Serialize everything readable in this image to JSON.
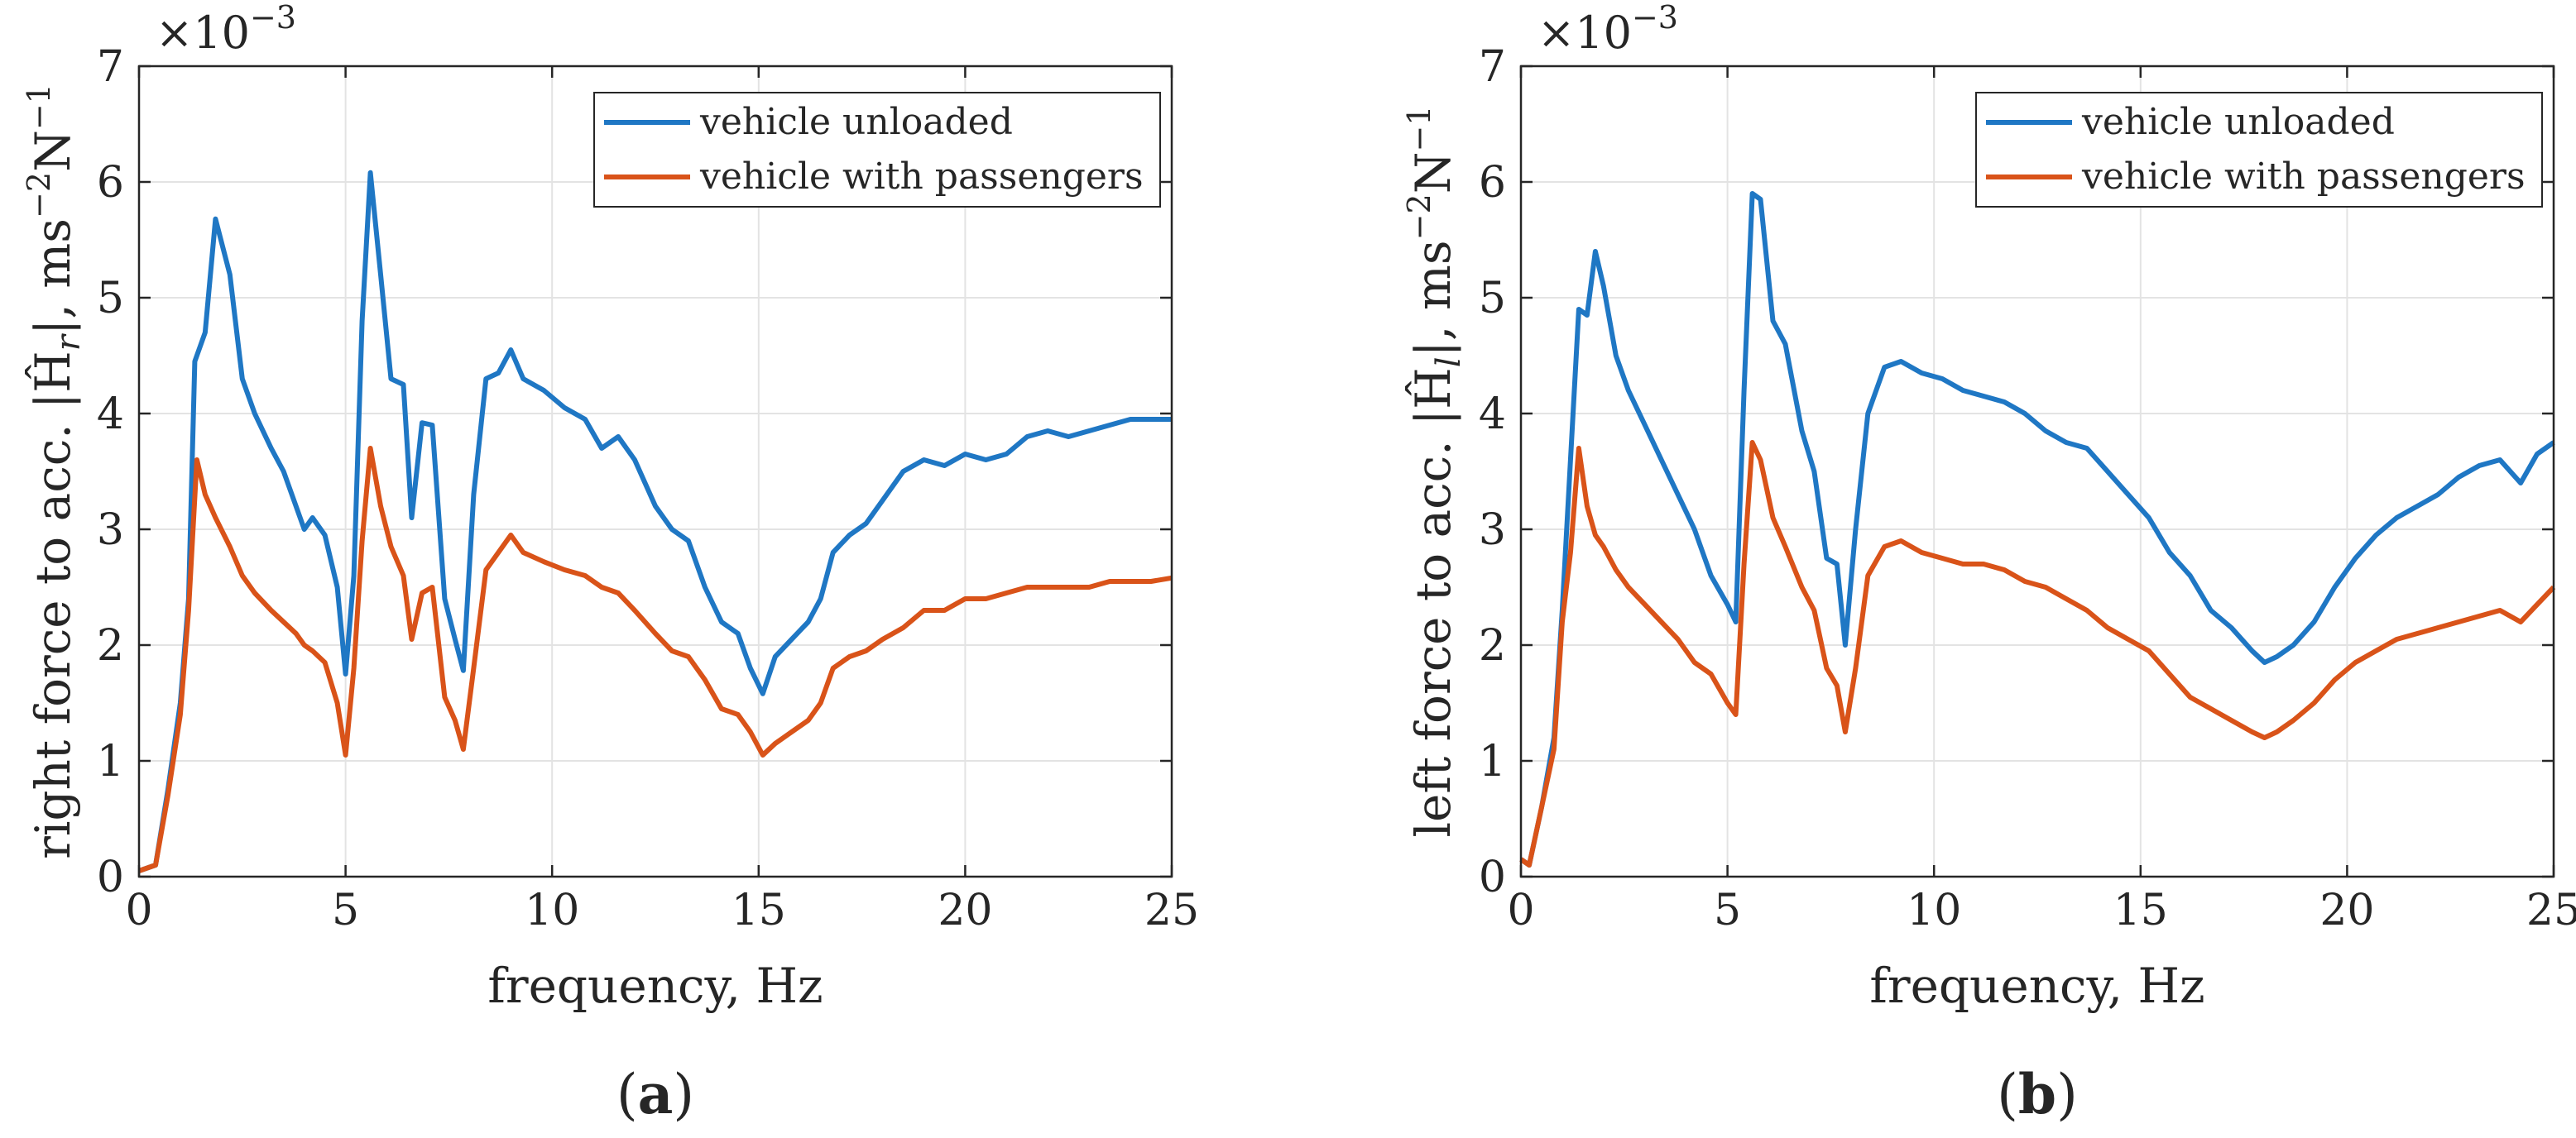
{
  "colors": {
    "unloaded": "#1f77c4",
    "passengers": "#d95319",
    "grid": "#e3e3e3",
    "axis": "#262626"
  },
  "chart_data": [
    {
      "type": "line",
      "panel_label": "(a)",
      "panel_letter": "a",
      "panel_open": "(",
      "panel_close": ")",
      "xlabel": "frequency, Hz",
      "ylabel_text": "right force to acc.",
      "ylabel_sym": "|Ĥ",
      "ylabel_sub": "r",
      "ylabel_units": "|, ms",
      "ylabel_exp1": "−2",
      "ylabel_n": "N",
      "ylabel_exp2": "−1",
      "exponent_base": "×10",
      "exponent_power": "−3",
      "xlim": [
        0,
        25
      ],
      "ylim": [
        0,
        7
      ],
      "xticks": [
        "0",
        "5",
        "10",
        "15",
        "20",
        "25"
      ],
      "yticks": [
        "0",
        "1",
        "2",
        "3",
        "4",
        "5",
        "6",
        "7"
      ],
      "grid": true,
      "legend_position": "top-right",
      "series": [
        {
          "name": "vehicle unloaded",
          "x": [
            0,
            0.4,
            0.7,
            1.0,
            1.2,
            1.35,
            1.6,
            1.85,
            2.2,
            2.5,
            2.8,
            3.2,
            3.5,
            3.8,
            4.0,
            4.2,
            4.5,
            4.8,
            5.0,
            5.2,
            5.4,
            5.6,
            5.85,
            6.1,
            6.4,
            6.6,
            6.85,
            7.1,
            7.4,
            7.65,
            7.85,
            8.1,
            8.4,
            8.7,
            9.0,
            9.3,
            9.8,
            10.3,
            10.8,
            11.2,
            11.6,
            12.0,
            12.5,
            12.9,
            13.3,
            13.7,
            14.1,
            14.5,
            14.8,
            15.1,
            15.4,
            15.8,
            16.2,
            16.5,
            16.8,
            17.2,
            17.6,
            18.0,
            18.5,
            19.0,
            19.5,
            20.0,
            20.5,
            21.0,
            21.5,
            22.0,
            22.5,
            23.0,
            23.5,
            24.0,
            24.5,
            25.0
          ],
          "y": [
            0.05,
            0.1,
            0.75,
            1.5,
            2.4,
            4.45,
            4.7,
            5.68,
            5.2,
            4.3,
            4.0,
            3.7,
            3.5,
            3.2,
            3.0,
            3.1,
            2.95,
            2.5,
            1.75,
            2.6,
            4.8,
            6.08,
            5.2,
            4.3,
            4.25,
            3.1,
            3.92,
            3.9,
            2.4,
            2.05,
            1.78,
            3.3,
            4.3,
            4.35,
            4.55,
            4.3,
            4.2,
            4.05,
            3.95,
            3.7,
            3.8,
            3.6,
            3.2,
            3.0,
            2.9,
            2.5,
            2.2,
            2.1,
            1.8,
            1.58,
            1.9,
            2.05,
            2.2,
            2.4,
            2.8,
            2.95,
            3.05,
            3.25,
            3.5,
            3.6,
            3.55,
            3.65,
            3.6,
            3.65,
            3.8,
            3.85,
            3.8,
            3.85,
            3.9,
            3.95,
            3.95,
            3.95
          ]
        },
        {
          "name": "vehicle with passengers",
          "x": [
            0,
            0.4,
            0.7,
            1.0,
            1.2,
            1.4,
            1.6,
            1.85,
            2.2,
            2.5,
            2.8,
            3.2,
            3.5,
            3.8,
            4.0,
            4.2,
            4.5,
            4.8,
            5.0,
            5.2,
            5.4,
            5.6,
            5.85,
            6.1,
            6.4,
            6.6,
            6.85,
            7.1,
            7.4,
            7.65,
            7.85,
            8.1,
            8.4,
            8.7,
            9.0,
            9.3,
            9.8,
            10.3,
            10.8,
            11.2,
            11.6,
            12.0,
            12.5,
            12.9,
            13.3,
            13.7,
            14.1,
            14.5,
            14.8,
            15.1,
            15.4,
            15.8,
            16.2,
            16.5,
            16.8,
            17.2,
            17.6,
            18.0,
            18.5,
            19.0,
            19.5,
            20.0,
            20.5,
            21.0,
            21.5,
            22.0,
            22.5,
            23.0,
            23.5,
            24.0,
            24.5,
            25.0
          ],
          "y": [
            0.05,
            0.1,
            0.7,
            1.4,
            2.3,
            3.6,
            3.3,
            3.1,
            2.85,
            2.6,
            2.45,
            2.3,
            2.2,
            2.1,
            2.0,
            1.95,
            1.85,
            1.5,
            1.05,
            1.8,
            2.9,
            3.7,
            3.2,
            2.85,
            2.6,
            2.05,
            2.45,
            2.5,
            1.55,
            1.35,
            1.1,
            1.8,
            2.65,
            2.8,
            2.95,
            2.8,
            2.72,
            2.65,
            2.6,
            2.5,
            2.45,
            2.3,
            2.1,
            1.95,
            1.9,
            1.7,
            1.45,
            1.4,
            1.25,
            1.05,
            1.15,
            1.25,
            1.35,
            1.5,
            1.8,
            1.9,
            1.95,
            2.05,
            2.15,
            2.3,
            2.3,
            2.4,
            2.4,
            2.45,
            2.5,
            2.5,
            2.5,
            2.5,
            2.55,
            2.55,
            2.55,
            2.58
          ]
        }
      ]
    },
    {
      "type": "line",
      "panel_label": "(b)",
      "panel_letter": "b",
      "panel_open": "(",
      "panel_close": ")",
      "xlabel": "frequency, Hz",
      "ylabel_text": "left force to acc.",
      "ylabel_sym": "|Ĥ",
      "ylabel_sub": "l",
      "ylabel_units": "|, ms",
      "ylabel_exp1": "−2",
      "ylabel_n": "N",
      "ylabel_exp2": "−1",
      "exponent_base": "×10",
      "exponent_power": "−3",
      "xlim": [
        0,
        25
      ],
      "ylim": [
        0,
        7
      ],
      "xticks": [
        "0",
        "5",
        "10",
        "15",
        "20",
        "25"
      ],
      "yticks": [
        "0",
        "1",
        "2",
        "3",
        "4",
        "5",
        "6",
        "7"
      ],
      "grid": true,
      "legend_position": "top-right",
      "series": [
        {
          "name": "vehicle unloaded",
          "x": [
            0,
            0.2,
            0.5,
            0.8,
            1.0,
            1.2,
            1.4,
            1.6,
            1.8,
            2.0,
            2.3,
            2.6,
            3.0,
            3.4,
            3.8,
            4.2,
            4.6,
            5.0,
            5.2,
            5.4,
            5.6,
            5.8,
            6.1,
            6.4,
            6.8,
            7.1,
            7.4,
            7.65,
            7.85,
            8.1,
            8.4,
            8.8,
            9.2,
            9.7,
            10.2,
            10.7,
            11.2,
            11.7,
            12.2,
            12.7,
            13.2,
            13.7,
            14.2,
            14.7,
            15.2,
            15.7,
            16.2,
            16.7,
            17.2,
            17.7,
            18.0,
            18.3,
            18.7,
            19.2,
            19.7,
            20.2,
            20.7,
            21.2,
            21.7,
            22.2,
            22.7,
            23.2,
            23.7,
            24.2,
            24.6,
            25.0
          ],
          "y": [
            0.15,
            0.1,
            0.6,
            1.2,
            2.3,
            3.6,
            4.9,
            4.85,
            5.4,
            5.1,
            4.5,
            4.2,
            3.9,
            3.6,
            3.3,
            3.0,
            2.6,
            2.35,
            2.2,
            4.2,
            5.9,
            5.85,
            4.8,
            4.6,
            3.85,
            3.5,
            2.75,
            2.7,
            2.0,
            3.0,
            4.0,
            4.4,
            4.45,
            4.35,
            4.3,
            4.2,
            4.15,
            4.1,
            4.0,
            3.85,
            3.75,
            3.7,
            3.5,
            3.3,
            3.1,
            2.8,
            2.6,
            2.3,
            2.15,
            1.95,
            1.85,
            1.9,
            2.0,
            2.2,
            2.5,
            2.75,
            2.95,
            3.1,
            3.2,
            3.3,
            3.45,
            3.55,
            3.6,
            3.4,
            3.65,
            3.75
          ]
        },
        {
          "name": "vehicle with passengers",
          "x": [
            0,
            0.2,
            0.5,
            0.8,
            1.0,
            1.2,
            1.4,
            1.6,
            1.8,
            2.0,
            2.3,
            2.6,
            3.0,
            3.4,
            3.8,
            4.2,
            4.6,
            5.0,
            5.2,
            5.4,
            5.6,
            5.8,
            6.1,
            6.4,
            6.8,
            7.1,
            7.4,
            7.65,
            7.85,
            8.1,
            8.4,
            8.8,
            9.2,
            9.7,
            10.2,
            10.7,
            11.2,
            11.7,
            12.2,
            12.7,
            13.2,
            13.7,
            14.2,
            14.7,
            15.2,
            15.7,
            16.2,
            16.7,
            17.2,
            17.7,
            18.0,
            18.3,
            18.7,
            19.2,
            19.7,
            20.2,
            20.7,
            21.2,
            21.7,
            22.2,
            22.7,
            23.2,
            23.7,
            24.2,
            24.6,
            25.0
          ],
          "y": [
            0.15,
            0.1,
            0.6,
            1.1,
            2.2,
            2.8,
            3.7,
            3.2,
            2.95,
            2.85,
            2.65,
            2.5,
            2.35,
            2.2,
            2.05,
            1.85,
            1.75,
            1.5,
            1.4,
            2.7,
            3.75,
            3.6,
            3.1,
            2.85,
            2.5,
            2.3,
            1.8,
            1.65,
            1.25,
            1.8,
            2.6,
            2.85,
            2.9,
            2.8,
            2.75,
            2.7,
            2.7,
            2.65,
            2.55,
            2.5,
            2.4,
            2.3,
            2.15,
            2.05,
            1.95,
            1.75,
            1.55,
            1.45,
            1.35,
            1.25,
            1.2,
            1.25,
            1.35,
            1.5,
            1.7,
            1.85,
            1.95,
            2.05,
            2.1,
            2.15,
            2.2,
            2.25,
            2.3,
            2.2,
            2.35,
            2.5
          ]
        }
      ]
    }
  ]
}
